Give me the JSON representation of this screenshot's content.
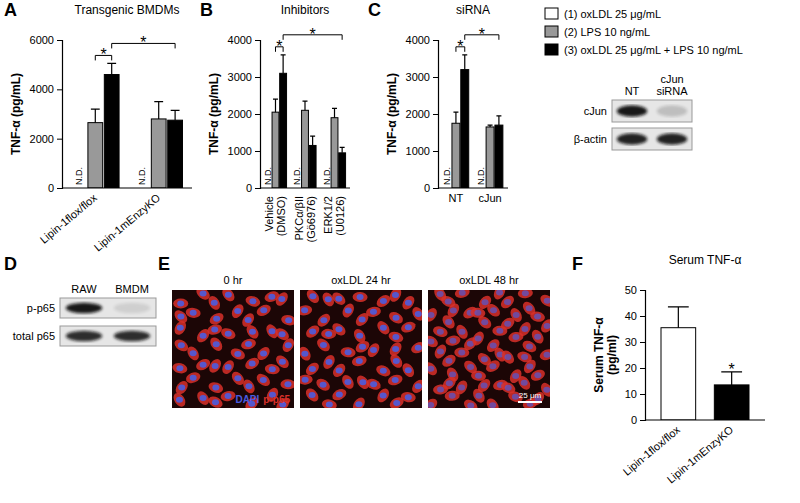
{
  "chart_data": [
    {
      "type": "bar",
      "title": "Transgenic BMDMs",
      "y_label": "TNF-α (pg/mL)",
      "categories": [
        "Lipin-1flox/flox",
        "Lipin-1mEnzyKO"
      ],
      "series": [
        {
          "name": "(1) oxLDL 25 μg/mL",
          "color": "#ffffff",
          "values": [
            null,
            null
          ],
          "value_labels": [
            "N.D.",
            "N.D."
          ]
        },
        {
          "name": "(2) LPS 10 ng/mL",
          "color": "#999999",
          "values": [
            2650,
            2800
          ],
          "errors": [
            550,
            700
          ]
        },
        {
          "name": "(3) oxLDL 25 μg/mL + LPS 10 ng/mL",
          "color": "#000000",
          "values": [
            4600,
            2750
          ],
          "errors": [
            450,
            400
          ]
        }
      ],
      "ylim": [
        0,
        6000
      ],
      "yticks": [
        0,
        2000,
        4000,
        6000
      ],
      "annotations": [
        {
          "label": "*",
          "from": [
            0,
            1
          ],
          "to": [
            0,
            2
          ]
        },
        {
          "label": "*",
          "from": [
            0,
            2
          ],
          "to": [
            1,
            2
          ]
        }
      ]
    },
    {
      "type": "bar",
      "title": "Inhibitors",
      "y_label": "TNF-α (pg/mL)",
      "categories": [
        "Vehicle (DMSO)",
        "PKCα/βII (Gö6976)",
        "ERK1/2 (U0126)"
      ],
      "series": [
        {
          "color": "#ffffff",
          "values": [
            null,
            null,
            null
          ],
          "value_labels": [
            "N.D.",
            "N.D.",
            "N.D."
          ]
        },
        {
          "color": "#999999",
          "values": [
            2050,
            2100,
            1900
          ],
          "errors": [
            350,
            250,
            250
          ]
        },
        {
          "color": "#000000",
          "values": [
            3100,
            1150,
            950
          ],
          "errors": [
            500,
            250,
            150
          ]
        }
      ],
      "ylim": [
        0,
        4000
      ],
      "yticks": [
        0,
        1000,
        2000,
        3000,
        4000
      ],
      "annotations": [
        {
          "label": "*",
          "from": [
            0,
            1
          ],
          "to": [
            0,
            2
          ]
        },
        {
          "label": "*",
          "from": [
            0,
            2
          ],
          "to": [
            2,
            2
          ]
        }
      ]
    },
    {
      "type": "bar",
      "title": "siRNA",
      "y_label": "TNF-α (pg/mL)",
      "categories": [
        "NT",
        "cJun"
      ],
      "series": [
        {
          "color": "#ffffff",
          "values": [
            null,
            null
          ],
          "value_labels": [
            "N.D.",
            "N.D."
          ]
        },
        {
          "color": "#999999",
          "values": [
            1750,
            1650
          ],
          "errors": [
            300,
            50
          ]
        },
        {
          "color": "#000000",
          "values": [
            3200,
            1700
          ],
          "errors": [
            400,
            250
          ]
        }
      ],
      "ylim": [
        0,
        4000
      ],
      "yticks": [
        0,
        1000,
        2000,
        3000,
        4000
      ],
      "annotations": [
        {
          "label": "*",
          "from": [
            0,
            1
          ],
          "to": [
            0,
            2
          ]
        },
        {
          "label": "*",
          "from": [
            0,
            2
          ],
          "to": [
            1,
            2
          ]
        }
      ]
    },
    {
      "type": "bar",
      "title": "Serum TNF-α",
      "y_label": "Serum TNF-α (pg/ml)",
      "categories": [
        "Lipin-1flox/flox",
        "Lipin-1mEnzyKO"
      ],
      "values": [
        35.5,
        13.5
      ],
      "errors": [
        8,
        5
      ],
      "colors": [
        "#ffffff",
        "#000000"
      ],
      "ylim": [
        0,
        50
      ],
      "yticks": [
        0,
        10,
        20,
        30,
        40,
        50
      ],
      "annotations": [
        {
          "label": "*",
          "at": 1
        }
      ]
    }
  ],
  "panel_labels": [
    "A",
    "B",
    "C",
    "D",
    "E",
    "F"
  ],
  "blots": [
    {
      "columns": [
        "NT",
        "cJun siRNA"
      ],
      "rows": [
        "cJun",
        "β-actin"
      ]
    },
    {
      "columns": [
        "RAW",
        "BMDM"
      ],
      "rows": [
        "p-p65",
        "total p65"
      ]
    }
  ],
  "images": {
    "labels": [
      "0 hr",
      "oxLDL 24 hr",
      "oxLDL 48 hr"
    ],
    "stains": [
      {
        "name": "DAPI",
        "color": "#4a5ce0"
      },
      {
        "name": "p-p65",
        "color": "#d8302a"
      }
    ],
    "scale_bar": "25 μm"
  }
}
